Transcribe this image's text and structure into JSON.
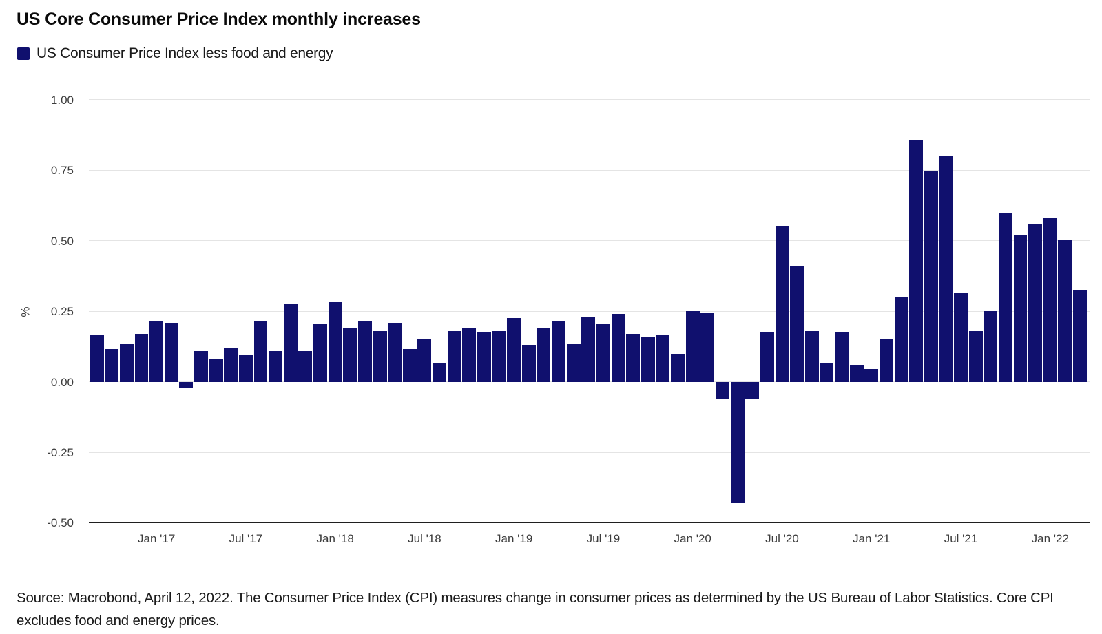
{
  "title": "US Core Consumer Price Index monthly increases",
  "legend": {
    "label": "US Consumer Price Index less food and energy"
  },
  "source_note": "Source: Macrobond, April 12, 2022. The Consumer Price Index (CPI) measures change in consumer prices as determined by the US Bureau of Labor Statistics. Core CPI excludes food and energy prices.",
  "colors": {
    "bar": "#10106e",
    "gridline": "#e4e4e4",
    "axis_line": "#1f1f1f",
    "tick_text": "#3c3c3c",
    "body_text": "#1a1a1a",
    "title_text": "#0a0a0a",
    "background": "#ffffff"
  },
  "y_axis": {
    "title": "%",
    "ticks": [
      {
        "label": "1.00",
        "value": 1.0
      },
      {
        "label": "0.75",
        "value": 0.75
      },
      {
        "label": "0.50",
        "value": 0.5
      },
      {
        "label": "0.25",
        "value": 0.25
      },
      {
        "label": "0.00",
        "value": 0.0
      },
      {
        "label": "-0.25",
        "value": -0.25
      },
      {
        "label": "-0.50",
        "value": -0.5
      }
    ]
  },
  "x_axis": {
    "ticks": [
      "Jan '17",
      "Jul '17",
      "Jan '18",
      "Jul '18",
      "Jan '19",
      "Jul '19",
      "Jan '20",
      "Jul '20",
      "Jan '21",
      "Jul '21",
      "Jan '22"
    ]
  },
  "chart_data": {
    "type": "bar",
    "title": "US Core Consumer Price Index monthly increases",
    "series_name": "US Consumer Price Index less food and energy",
    "unit": "%",
    "ylabel": "%",
    "ylim": [
      -0.5,
      1.0
    ],
    "grid": "horizontal",
    "legend_position": "top-left",
    "x": [
      "Sep '16",
      "Oct '16",
      "Nov '16",
      "Dec '16",
      "Jan '17",
      "Feb '17",
      "Mar '17",
      "Apr '17",
      "May '17",
      "Jun '17",
      "Jul '17",
      "Aug '17",
      "Sep '17",
      "Oct '17",
      "Nov '17",
      "Dec '17",
      "Jan '18",
      "Feb '18",
      "Mar '18",
      "Apr '18",
      "May '18",
      "Jun '18",
      "Jul '18",
      "Aug '18",
      "Sep '18",
      "Oct '18",
      "Nov '18",
      "Dec '18",
      "Jan '19",
      "Feb '19",
      "Mar '19",
      "Apr '19",
      "May '19",
      "Jun '19",
      "Jul '19",
      "Aug '19",
      "Sep '19",
      "Oct '19",
      "Nov '19",
      "Dec '19",
      "Jan '20",
      "Feb '20",
      "Mar '20",
      "Apr '20",
      "May '20",
      "Jun '20",
      "Jul '20",
      "Aug '20",
      "Sep '20",
      "Oct '20",
      "Nov '20",
      "Dec '20",
      "Jan '21",
      "Feb '21",
      "Mar '21",
      "Apr '21",
      "May '21",
      "Jun '21",
      "Jul '21",
      "Aug '21",
      "Sep '21",
      "Oct '21",
      "Nov '21",
      "Dec '21",
      "Jan '22",
      "Feb '22",
      "Mar '22"
    ],
    "values": [
      0.165,
      0.115,
      0.135,
      0.17,
      0.215,
      0.21,
      -0.02,
      0.11,
      0.08,
      0.12,
      0.095,
      0.215,
      0.11,
      0.275,
      0.11,
      0.205,
      0.285,
      0.19,
      0.215,
      0.18,
      0.21,
      0.115,
      0.15,
      0.065,
      0.18,
      0.19,
      0.175,
      0.18,
      0.225,
      0.13,
      0.19,
      0.215,
      0.135,
      0.23,
      0.205,
      0.24,
      0.17,
      0.16,
      0.165,
      0.1,
      0.25,
      0.245,
      -0.06,
      -0.43,
      -0.06,
      0.175,
      0.55,
      0.41,
      0.18,
      0.065,
      0.175,
      0.06,
      0.045,
      0.15,
      0.3,
      0.855,
      0.745,
      0.8,
      0.315,
      0.18,
      0.25,
      0.6,
      0.52,
      0.56,
      0.58,
      0.505,
      0.325
    ]
  }
}
